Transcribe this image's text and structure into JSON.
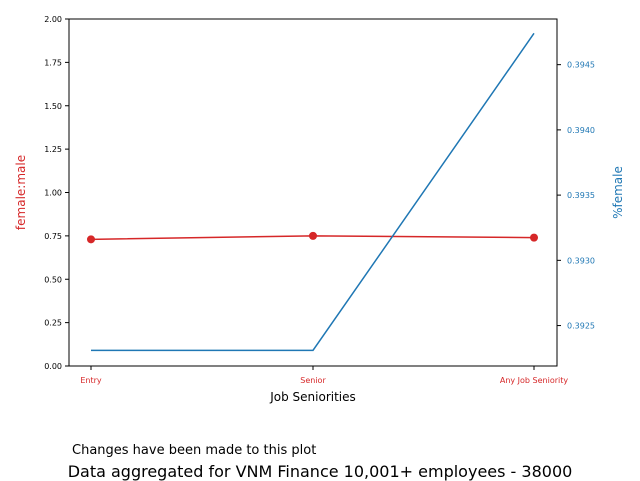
{
  "chart_data": {
    "type": "line",
    "categories": [
      "Entry",
      "Senior",
      "Any Job Seniority"
    ],
    "xlabel": "Job Seniorities",
    "left_axis": {
      "label": "female:male",
      "color": "#d62728",
      "ylim": [
        0,
        2.0
      ],
      "ticks": [
        "0.00",
        "0.25",
        "0.50",
        "0.75",
        "1.00",
        "1.25",
        "1.50",
        "1.75",
        "2.00"
      ],
      "tick_values": [
        0,
        0.25,
        0.5,
        0.75,
        1.0,
        1.25,
        1.5,
        1.75,
        2.0
      ]
    },
    "right_axis": {
      "label": "%female",
      "color": "#1f77b4",
      "ylim": [
        0.39219,
        0.39485
      ],
      "ticks": [
        "0.3925",
        "0.3930",
        "0.3935",
        "0.3940",
        "0.3945"
      ],
      "tick_values": [
        0.3925,
        0.393,
        0.3935,
        0.394,
        0.3945
      ]
    },
    "series": [
      {
        "axis": "left",
        "color": "#d62728",
        "marker": "circle",
        "values": [
          0.73,
          0.75,
          0.74
        ]
      },
      {
        "axis": "right",
        "color": "#1f77b4",
        "marker": "none",
        "values": [
          0.39231,
          0.39231,
          0.39474
        ]
      }
    ],
    "grid": false
  },
  "annotations": {
    "note": "Changes have been made to this plot",
    "footer": "Data aggregated for VNM Finance 10,001+ employees - 38000"
  }
}
